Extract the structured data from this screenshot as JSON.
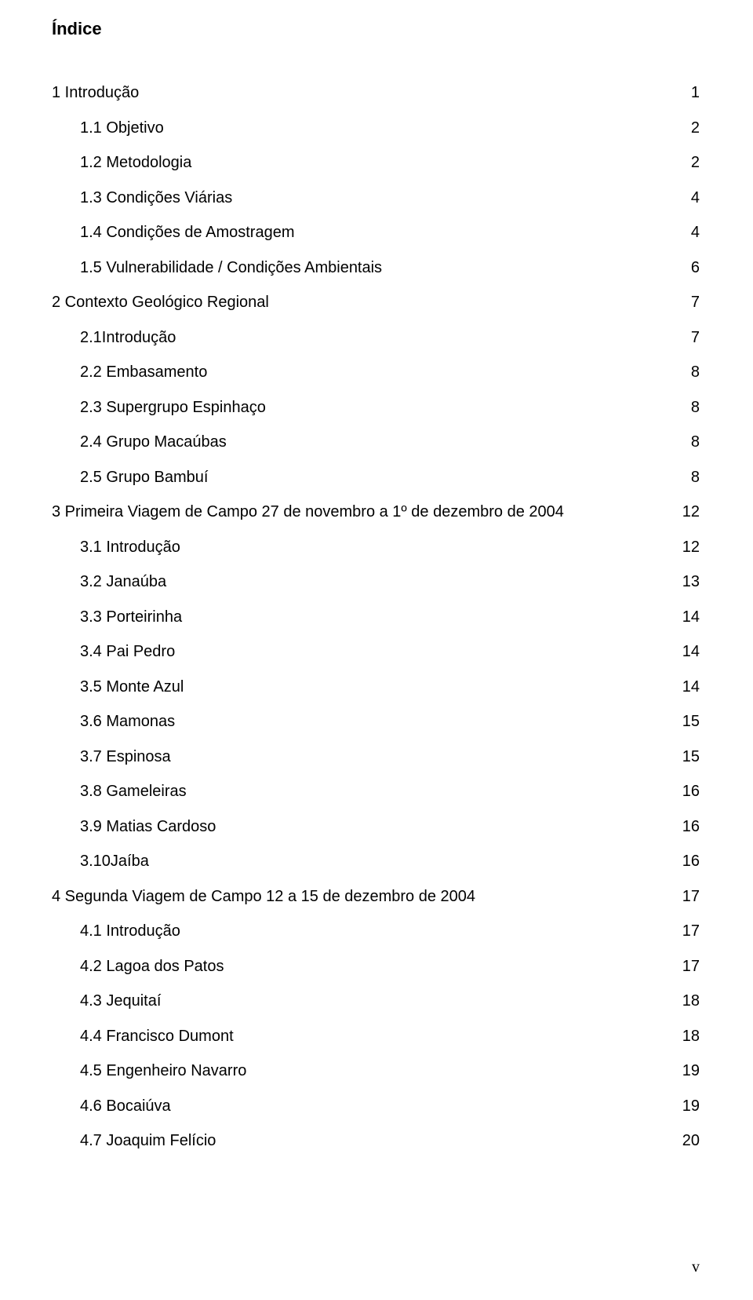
{
  "title": "Índice",
  "footer": "v",
  "entries": [
    {
      "label": "1 Introdução",
      "page": "1",
      "indent": 0
    },
    {
      "label": "1.1 Objetivo",
      "page": "2",
      "indent": 1
    },
    {
      "label": "1.2 Metodologia",
      "page": "2",
      "indent": 1
    },
    {
      "label": "1.3 Condições Viárias",
      "page": "4",
      "indent": 1
    },
    {
      "label": "1.4 Condições de Amostragem",
      "page": "4",
      "indent": 1
    },
    {
      "label": "1.5 Vulnerabilidade / Condições Ambientais",
      "page": "6",
      "indent": 1
    },
    {
      "label": "2 Contexto Geológico Regional",
      "page": "7",
      "indent": 0
    },
    {
      "label": "2.1Introdução",
      "page": "7",
      "indent": 1
    },
    {
      "label": "2.2 Embasamento",
      "page": "8",
      "indent": 1
    },
    {
      "label": "2.3 Supergrupo Espinhaço",
      "page": "8",
      "indent": 1
    },
    {
      "label": "2.4 Grupo Macaúbas",
      "page": "8",
      "indent": 1
    },
    {
      "label": "2.5 Grupo Bambuí",
      "page": "8",
      "indent": 1
    },
    {
      "label": "3 Primeira Viagem de Campo 27 de novembro a 1º de dezembro de 2004",
      "page": "12",
      "indent": 0
    },
    {
      "label": "3.1 Introdução",
      "page": "12",
      "indent": 1
    },
    {
      "label": "3.2 Janaúba",
      "page": "13",
      "indent": 1
    },
    {
      "label": "3.3 Porteirinha",
      "page": "14",
      "indent": 1
    },
    {
      "label": "3.4 Pai Pedro",
      "page": "14",
      "indent": 1
    },
    {
      "label": "3.5 Monte Azul",
      "page": "14",
      "indent": 1
    },
    {
      "label": "3.6 Mamonas",
      "page": "15",
      "indent": 1
    },
    {
      "label": "3.7 Espinosa",
      "page": "15",
      "indent": 1
    },
    {
      "label": "3.8 Gameleiras",
      "page": "16",
      "indent": 1
    },
    {
      "label": "3.9 Matias Cardoso",
      "page": "16",
      "indent": 1
    },
    {
      "label": "3.10Jaíba",
      "page": "16",
      "indent": 1
    },
    {
      "label": "4 Segunda Viagem de Campo 12 a 15 de dezembro de 2004",
      "page": "17",
      "indent": 0
    },
    {
      "label": "4.1 Introdução",
      "page": "17",
      "indent": 1
    },
    {
      "label": "4.2 Lagoa dos Patos",
      "page": "17",
      "indent": 1
    },
    {
      "label": "4.3 Jequitaí",
      "page": "18",
      "indent": 1
    },
    {
      "label": "4.4 Francisco Dumont",
      "page": "18",
      "indent": 1
    },
    {
      "label": "4.5 Engenheiro Navarro",
      "page": "19",
      "indent": 1
    },
    {
      "label": "4.6 Bocaiúva",
      "page": "19",
      "indent": 1
    },
    {
      "label": "4.7 Joaquim Felício",
      "page": "20",
      "indent": 1
    }
  ]
}
